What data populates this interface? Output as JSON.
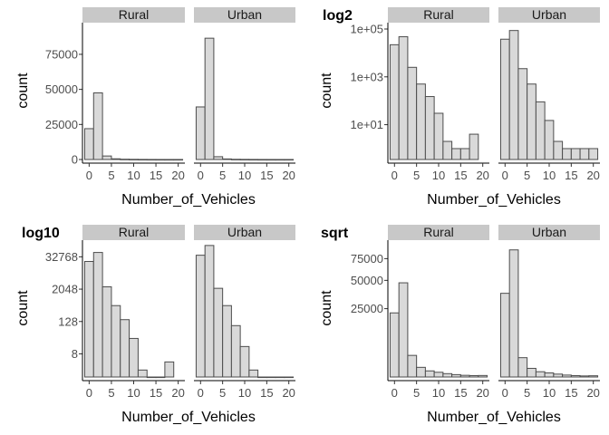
{
  "chart_data": [
    {
      "type": "bar",
      "tag": "",
      "xlabel": "Number_of_Vehicles",
      "ylabel": "count",
      "yscale": "linear",
      "ylim": [
        0,
        95000
      ],
      "xlim": [
        -1.5,
        21.5
      ],
      "xticks": [
        0,
        5,
        10,
        15,
        20
      ],
      "xtick_labels": [
        "0",
        "5",
        "10",
        "15",
        "20"
      ],
      "yticks": [
        0,
        25000,
        50000,
        75000
      ],
      "ytick_labels": [
        "0",
        "25000",
        "50000",
        "75000"
      ],
      "bin_width": 2,
      "bin_centers": [
        0,
        2,
        4,
        6,
        8,
        10,
        12,
        14,
        16,
        18,
        20
      ],
      "facets": [
        {
          "name": "Rural",
          "values": [
            22000,
            47500,
            2500,
            500,
            200,
            120,
            60,
            30,
            15,
            10,
            12
          ]
        },
        {
          "name": "Urban",
          "values": [
            37500,
            86500,
            2000,
            400,
            150,
            90,
            45,
            20,
            10,
            6,
            8
          ]
        }
      ]
    },
    {
      "type": "bar",
      "tag": "log2",
      "xlabel": "Number_of_Vehicles",
      "ylabel": "count",
      "yscale": "log",
      "ylim": [
        0.35,
        130000
      ],
      "xlim": [
        -1.5,
        21.5
      ],
      "xticks": [
        0,
        5,
        10,
        15,
        20
      ],
      "xtick_labels": [
        "0",
        "5",
        "10",
        "15",
        "20"
      ],
      "yticks": [
        10,
        1000,
        100000
      ],
      "ytick_labels": [
        "1e+01",
        "1e+03",
        "1e+05"
      ],
      "bin_width": 2,
      "bin_centers": [
        0,
        2,
        4,
        6,
        8,
        10,
        12,
        14,
        16,
        18,
        20
      ],
      "facets": [
        {
          "name": "Rural",
          "values": [
            22000,
            47500,
            2500,
            500,
            150,
            30,
            2,
            1,
            1,
            4,
            0
          ]
        },
        {
          "name": "Urban",
          "values": [
            37500,
            86500,
            2200,
            500,
            90,
            15,
            2,
            1,
            1,
            1,
            1
          ]
        }
      ]
    },
    {
      "type": "bar",
      "tag": "log10",
      "xlabel": "Number_of_Vehicles",
      "ylabel": "count",
      "yscale": "log",
      "ylim": [
        1.1,
        100000
      ],
      "xlim": [
        -1.5,
        21.5
      ],
      "xticks": [
        0,
        5,
        10,
        15,
        20
      ],
      "xtick_labels": [
        "0",
        "5",
        "10",
        "15",
        "20"
      ],
      "yticks": [
        8,
        128,
        2048,
        32768
      ],
      "ytick_labels": [
        "8",
        "128",
        "2048",
        "32768"
      ],
      "bin_width": 2,
      "bin_centers": [
        0,
        2,
        4,
        6,
        8,
        10,
        12,
        14,
        16,
        18,
        20
      ],
      "facets": [
        {
          "name": "Rural",
          "values": [
            22000,
            47500,
            2500,
            500,
            150,
            30,
            2,
            1,
            1,
            4,
            0
          ]
        },
        {
          "name": "Urban",
          "values": [
            37500,
            86500,
            2200,
            500,
            90,
            15,
            2,
            1,
            1,
            1,
            1
          ]
        }
      ]
    },
    {
      "type": "bar",
      "tag": "sqrt",
      "xlabel": "Number_of_Vehicles",
      "ylabel": "count",
      "yscale": "sqrt",
      "ylim": [
        0,
        95000
      ],
      "xlim": [
        -1.5,
        21.5
      ],
      "xticks": [
        0,
        5,
        10,
        15,
        20
      ],
      "xtick_labels": [
        "0",
        "5",
        "10",
        "15",
        "20"
      ],
      "yticks": [
        25000,
        50000,
        75000
      ],
      "ytick_labels": [
        "25000",
        "50000",
        "75000"
      ],
      "bin_width": 2,
      "bin_centers": [
        0,
        2,
        4,
        6,
        8,
        10,
        12,
        14,
        16,
        18,
        20
      ],
      "facets": [
        {
          "name": "Rural",
          "values": [
            22000,
            47500,
            2500,
            500,
            200,
            120,
            60,
            30,
            15,
            10,
            12
          ]
        },
        {
          "name": "Urban",
          "values": [
            37500,
            86500,
            2000,
            400,
            150,
            90,
            45,
            20,
            10,
            6,
            8
          ]
        }
      ]
    }
  ]
}
